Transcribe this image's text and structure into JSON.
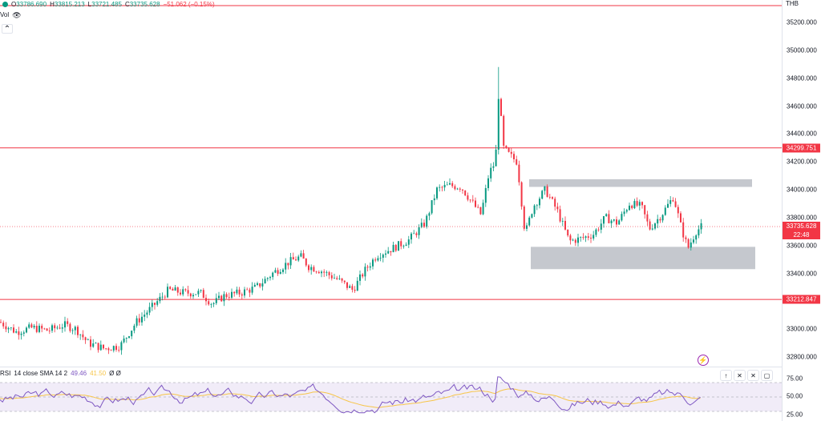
{
  "legend": {
    "open_label": "O",
    "open": "33786.690",
    "high_label": "H",
    "high": "33815.213",
    "low_label": "L",
    "low": "33721.485",
    "close_label": "C",
    "close": "33735.628",
    "change": "−51.062 (−0.15%)"
  },
  "vol_label": "Vol",
  "currency": "THB",
  "price_axis": {
    "ticks": [
      "35200.000",
      "35000.000",
      "34800.000",
      "34600.000",
      "34400.000",
      "34200.000",
      "34000.000",
      "33800.000",
      "33600.000",
      "33400.000",
      "33200.000",
      "33000.000",
      "32800.000"
    ],
    "tick_values": [
      35200,
      35000,
      34800,
      34600,
      34400,
      34200,
      34000,
      33800,
      33600,
      33400,
      33200,
      33000,
      32800
    ],
    "level_tags": [
      "34299.751",
      "33212.847"
    ],
    "level_values": [
      34299.751,
      33212.847
    ],
    "current_price": "33735.628",
    "current_countdown": "22:48",
    "current_value": 33735.628
  },
  "rsi": {
    "name": "RSI",
    "params": "14 close SMA 14 2",
    "value": "49.46",
    "sma": "41.50",
    "extra": "Ø Ø",
    "ticks": [
      "75.00",
      "50.00",
      "25.00"
    ],
    "tick_values": [
      75,
      50,
      25
    ]
  },
  "pane_controls": [
    "↑",
    "✕",
    "✕",
    "▢"
  ],
  "colors": {
    "up": "#089981",
    "down": "#f23645",
    "level_line": "#f23645",
    "zone": "#b2b5be",
    "rsi_line": "#7e57c2",
    "rsi_sma": "#f7c548",
    "rsi_band": "#ede7f6"
  },
  "chart_data": {
    "type": "candlestick",
    "ylim": [
      32700,
      35320
    ],
    "horizontal_levels": [
      35320,
      34299.751,
      33212.847
    ],
    "zones": [
      {
        "name": "resistance",
        "y_from": 34020,
        "y_to": 34075
      },
      {
        "name": "support",
        "y_from": 33430,
        "y_to": 33590
      }
    ]
  }
}
